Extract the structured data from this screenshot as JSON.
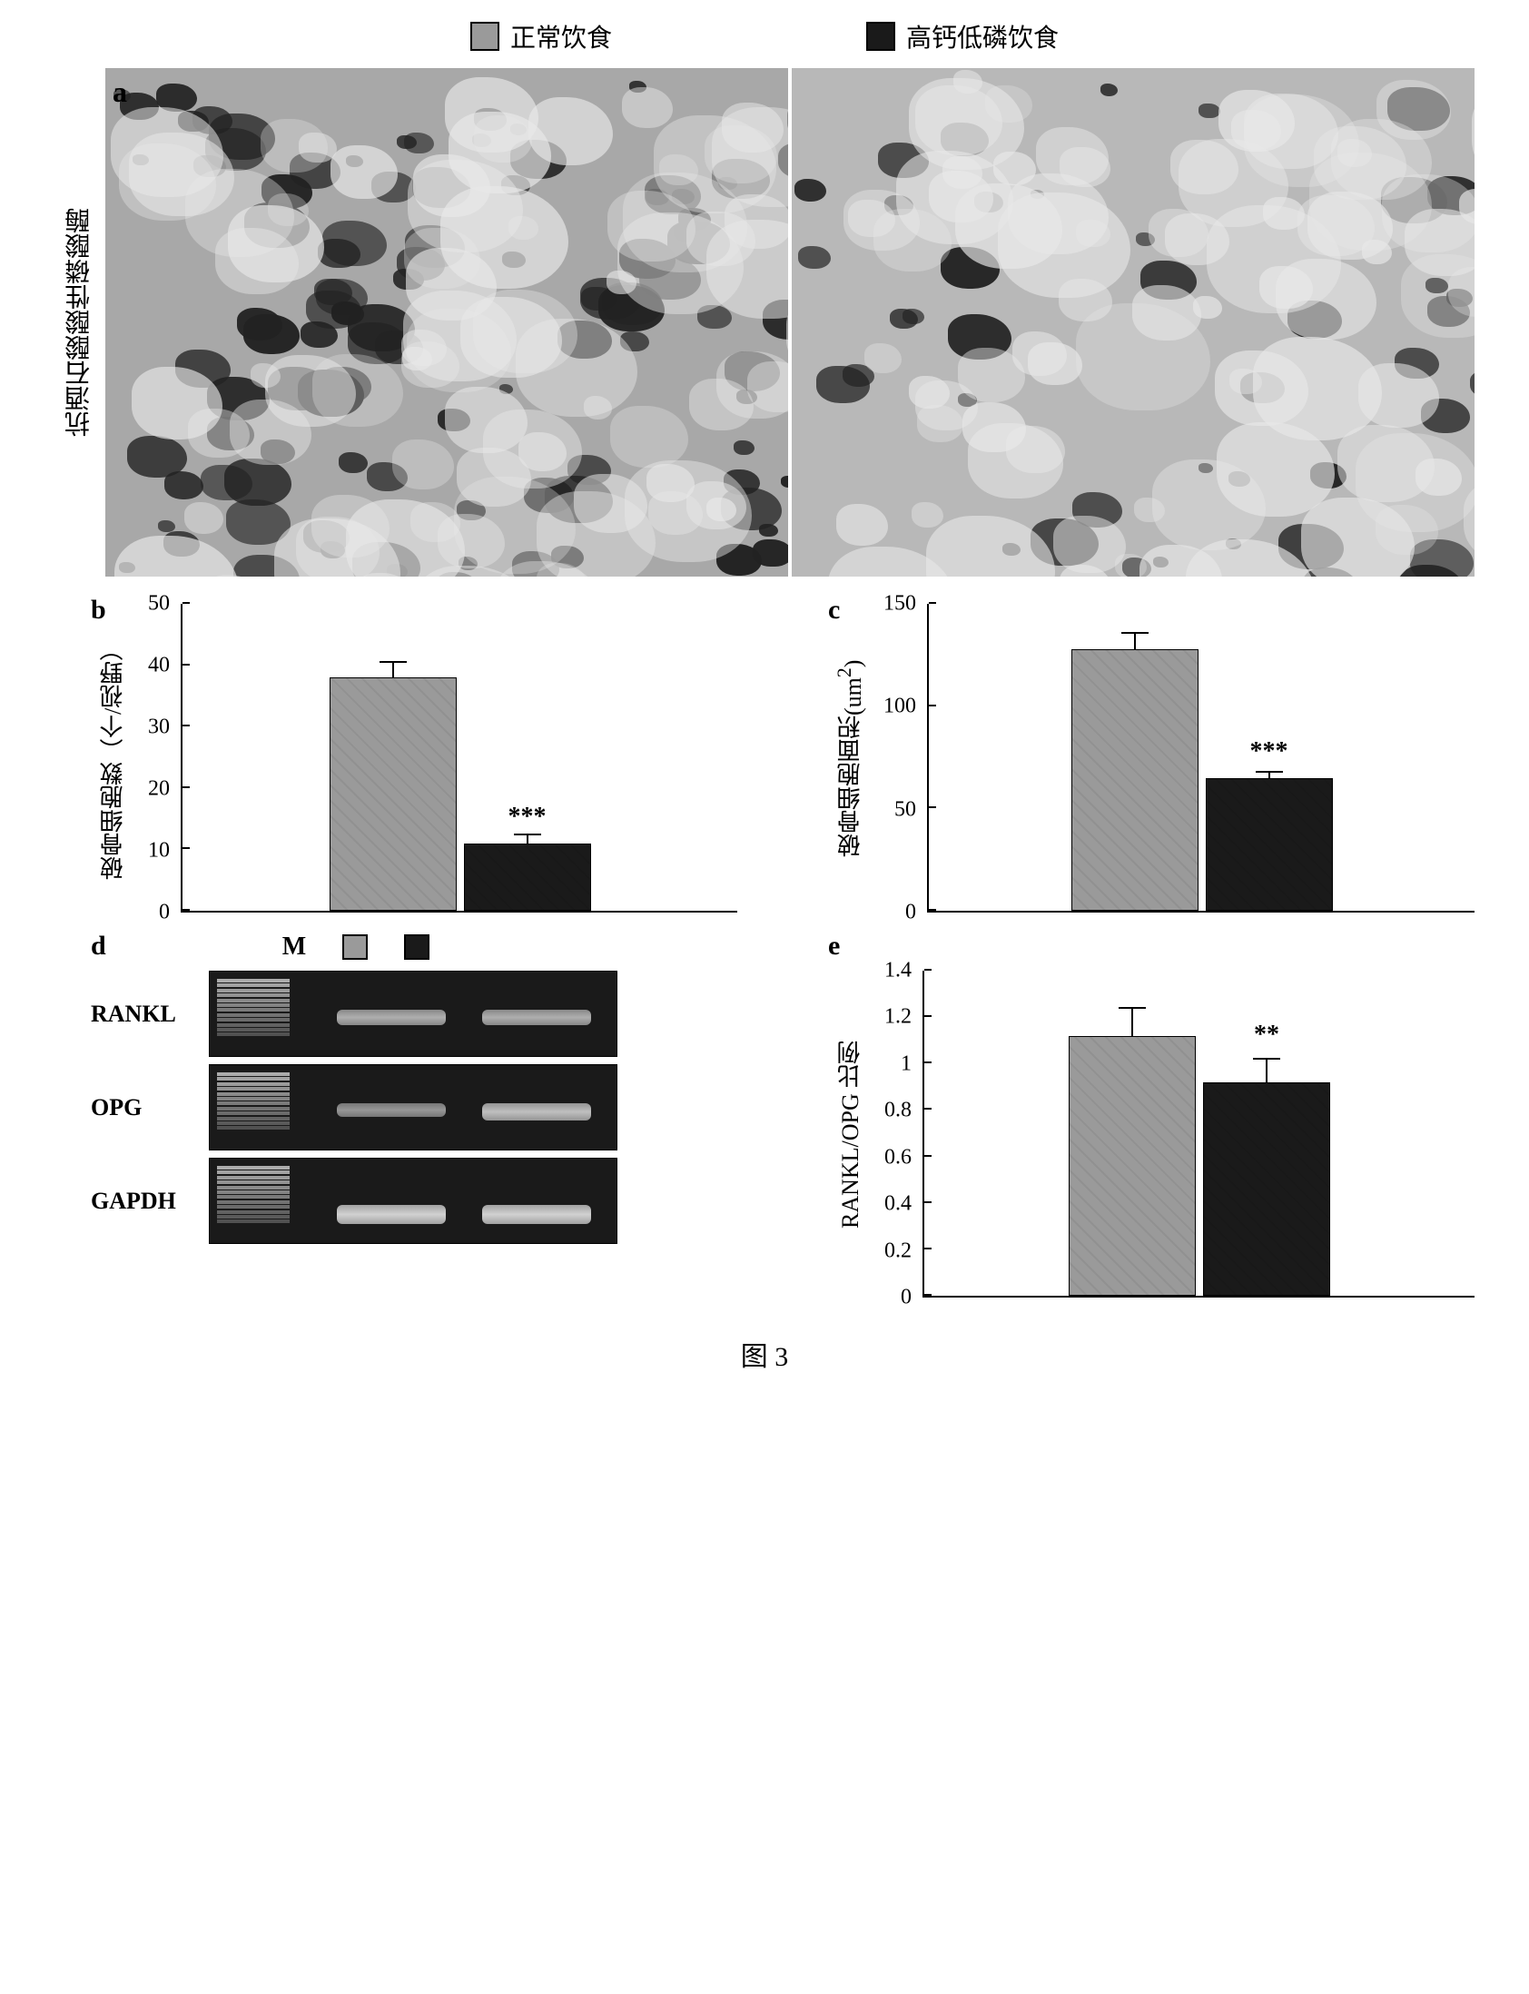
{
  "legend": {
    "items": [
      {
        "label": "正常饮食",
        "color": "#9a9a9a"
      },
      {
        "label": "高钙低磷饮食",
        "color": "#1a1a1a"
      }
    ]
  },
  "panel_a": {
    "letter": "a",
    "y_label": "抗酒石酸酸性磷酸酶",
    "micrographs": {
      "left": {
        "bg_color": "#a8a8a8",
        "dark_density": 0.85
      },
      "right": {
        "bg_color": "#b8b8b8",
        "dark_density": 0.35
      }
    }
  },
  "panel_b": {
    "letter": "b",
    "y_label": "破骨细胞数（个/视野）",
    "ylim": [
      0,
      50
    ],
    "ytick_step": 10,
    "bars": [
      {
        "value": 38,
        "error": 2.5,
        "color": "#9a9a9a",
        "sig": ""
      },
      {
        "value": 11,
        "error": 1.5,
        "color": "#1a1a1a",
        "sig": "***"
      }
    ]
  },
  "panel_c": {
    "letter": "c",
    "y_label_line1": "破骨细胞面积",
    "y_label_line2": "(um²)",
    "ylim": [
      0,
      150
    ],
    "ytick_step": 50,
    "bars": [
      {
        "value": 128,
        "error": 8,
        "color": "#9a9a9a",
        "sig": ""
      },
      {
        "value": 65,
        "error": 3,
        "color": "#1a1a1a",
        "sig": "***"
      }
    ]
  },
  "panel_d": {
    "letter": "d",
    "marker_label": "M",
    "lanes": [
      {
        "color": "#9a9a9a"
      },
      {
        "color": "#1a1a1a"
      }
    ],
    "rows": [
      {
        "label": "RANKL",
        "band_intensity": [
          0.6,
          0.6
        ],
        "band_y": 0.45
      },
      {
        "label": "OPG",
        "band_intensity": [
          0.4,
          0.75
        ],
        "band_y": 0.45
      },
      {
        "label": "GAPDH",
        "band_intensity": [
          0.9,
          0.9
        ],
        "band_y": 0.55
      }
    ]
  },
  "panel_e": {
    "letter": "e",
    "y_label": "RANKL/OPG 比例",
    "ylim": [
      0,
      1.4
    ],
    "ytick_step": 0.2,
    "bars": [
      {
        "value": 1.12,
        "error": 0.12,
        "color": "#9a9a9a",
        "sig": ""
      },
      {
        "value": 0.92,
        "error": 0.1,
        "color": "#1a1a1a",
        "sig": "**"
      }
    ]
  },
  "caption": "图 3",
  "colors": {
    "axis": "#000000",
    "bg": "#ffffff",
    "gel_bg": "#1a1a1a",
    "band_light": "#cccccc"
  },
  "fonts": {
    "body_size": 26,
    "label_size": 28,
    "letter_size": 30
  }
}
